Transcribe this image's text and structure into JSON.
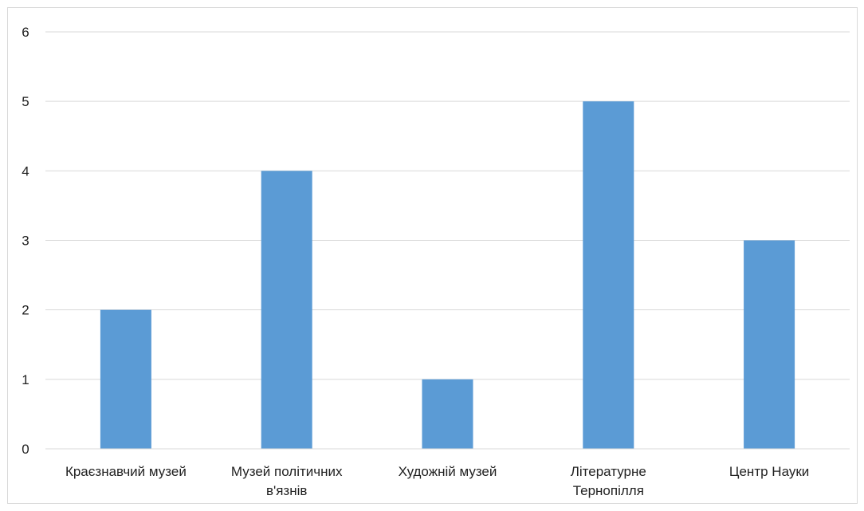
{
  "chart_data": {
    "type": "bar",
    "categories": [
      [
        "Краєзнавчий музей"
      ],
      [
        "Музей політичних",
        "в'язнів"
      ],
      [
        "Художній музей"
      ],
      [
        "Літературне",
        "Тернопілля"
      ],
      [
        "Центр Науки"
      ]
    ],
    "values": [
      2,
      4,
      1,
      5,
      3
    ],
    "ylim": [
      0,
      6
    ],
    "yticks": [
      0,
      1,
      2,
      3,
      4,
      5,
      6
    ],
    "grid": true,
    "bar_color": "#5b9bd5",
    "grid_color": "#d9d9d9",
    "legend": false
  }
}
